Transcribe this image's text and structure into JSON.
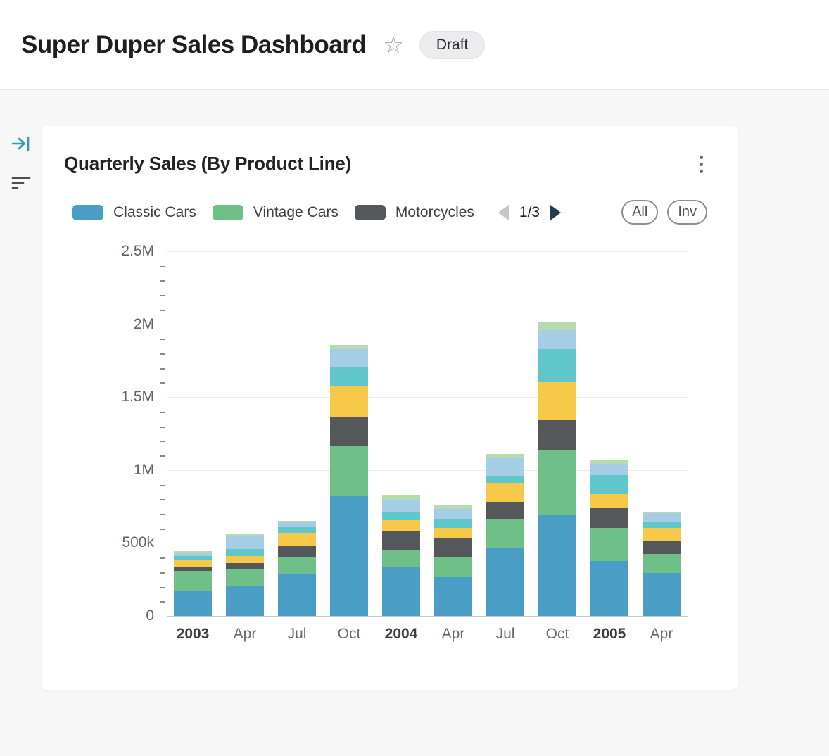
{
  "page": {
    "title": "Super Duper Sales Dashboard",
    "status_badge": "Draft"
  },
  "sidebar": {
    "icons": [
      "collapse-panel-icon",
      "filter-icon"
    ],
    "collapse_icon_color": "#2a9db5",
    "filter_icon_color": "#4b4f52"
  },
  "card": {
    "title": "Quarterly Sales (By Product Line)",
    "pagination": {
      "label": "1/3"
    },
    "buttons": {
      "all": "All",
      "inv": "Inv"
    }
  },
  "chart_data": {
    "type": "bar",
    "stacked": true,
    "title": "Quarterly Sales (By Product Line)",
    "categories": [
      "2003",
      "Apr",
      "Jul",
      "Oct",
      "2004",
      "Apr",
      "Jul",
      "Oct",
      "2005",
      "Apr"
    ],
    "bold_categories": [
      "2003",
      "2004",
      "2005"
    ],
    "legend_visible": [
      "Classic Cars",
      "Vintage Cars",
      "Motorcycles"
    ],
    "legend_position": "top",
    "grid": true,
    "ylim": [
      0,
      2500000
    ],
    "y_axis": {
      "major_step": 500000,
      "minor_step": 100000,
      "ticks": [
        {
          "label": "0",
          "value": 0
        },
        {
          "label": "500k",
          "value": 500000
        },
        {
          "label": "1M",
          "value": 1000000
        },
        {
          "label": "1.5M",
          "value": 1500000
        },
        {
          "label": "2M",
          "value": 2000000
        },
        {
          "label": "2.5M",
          "value": 2500000
        }
      ]
    },
    "series": [
      {
        "name": "Classic Cars",
        "color": "#4a9dc4",
        "in_visible_legend": true,
        "values": [
          170000,
          210000,
          285000,
          820000,
          340000,
          265000,
          470000,
          690000,
          375000,
          295000
        ]
      },
      {
        "name": "Vintage Cars",
        "color": "#6fbf88",
        "in_visible_legend": true,
        "values": [
          140000,
          110000,
          120000,
          350000,
          110000,
          135000,
          190000,
          450000,
          230000,
          130000
        ]
      },
      {
        "name": "Motorcycles",
        "color": "#55585a",
        "in_visible_legend": true,
        "values": [
          25000,
          40000,
          75000,
          190000,
          130000,
          130000,
          120000,
          200000,
          140000,
          90000
        ]
      },
      {
        "name": "Unlabeled (yellow)",
        "color": "#f7c948",
        "in_visible_legend": false,
        "values": [
          45000,
          50000,
          90000,
          220000,
          75000,
          75000,
          130000,
          270000,
          90000,
          90000
        ]
      },
      {
        "name": "Unlabeled (teal)",
        "color": "#5fc6c9",
        "in_visible_legend": false,
        "values": [
          30000,
          50000,
          40000,
          130000,
          60000,
          60000,
          50000,
          220000,
          130000,
          40000
        ]
      },
      {
        "name": "Unlabeled (light blue)",
        "color": "#a6cde6",
        "in_visible_legend": false,
        "values": [
          25000,
          90000,
          30000,
          120000,
          80000,
          70000,
          120000,
          130000,
          80000,
          60000
        ]
      },
      {
        "name": "Unlabeled (light green)",
        "color": "#b6dcae",
        "in_visible_legend": false,
        "values": [
          10000,
          10000,
          10000,
          30000,
          35000,
          25000,
          30000,
          60000,
          25000,
          10000
        ]
      }
    ]
  }
}
